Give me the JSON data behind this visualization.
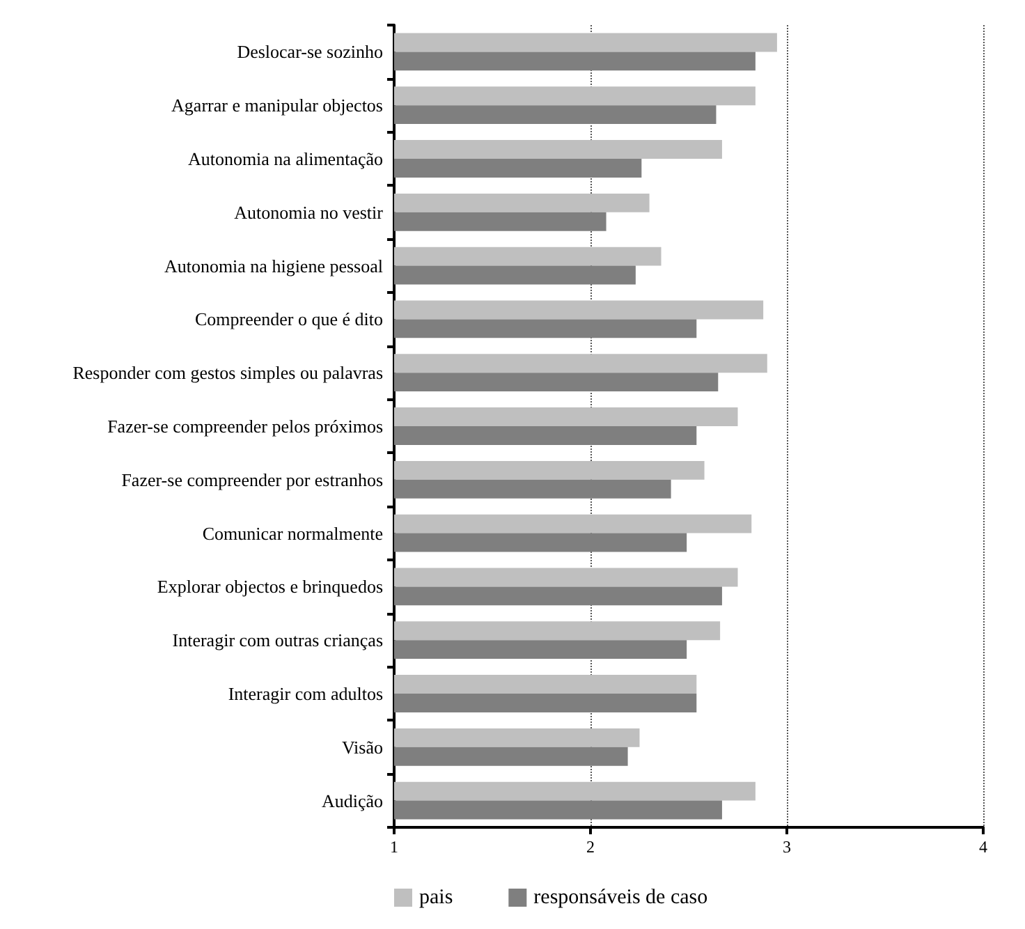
{
  "chart_data": {
    "type": "bar",
    "orientation": "horizontal",
    "categories": [
      "Deslocar-se sozinho",
      "Agarrar e manipular objectos",
      "Autonomia na alimentação",
      "Autonomia no vestir",
      "Autonomia na higiene pessoal",
      "Compreender o que é dito",
      "Responder com gestos simples ou palavras",
      "Fazer-se compreender pelos próximos",
      "Fazer-se compreender por estranhos",
      "Comunicar normalmente",
      "Explorar objectos e brinquedos",
      "Interagir com outras crianças",
      "Interagir com adultos",
      "Visão",
      "Audição"
    ],
    "series": [
      {
        "name": "pais",
        "color": "#bfbfbf",
        "values": [
          2.95,
          2.84,
          2.67,
          2.3,
          2.36,
          2.88,
          2.9,
          2.75,
          2.58,
          2.82,
          2.75,
          2.66,
          2.54,
          2.25,
          2.84
        ]
      },
      {
        "name": "responsáveis de caso",
        "color": "#7f7f7f",
        "values": [
          2.84,
          2.64,
          2.26,
          2.08,
          2.23,
          2.54,
          2.65,
          2.54,
          2.41,
          2.49,
          2.67,
          2.49,
          2.54,
          2.19,
          2.67
        ]
      }
    ],
    "xlim": [
      1,
      4
    ],
    "xticks": [
      1,
      2,
      3,
      4
    ],
    "grid": "x",
    "legend": "bottom"
  }
}
